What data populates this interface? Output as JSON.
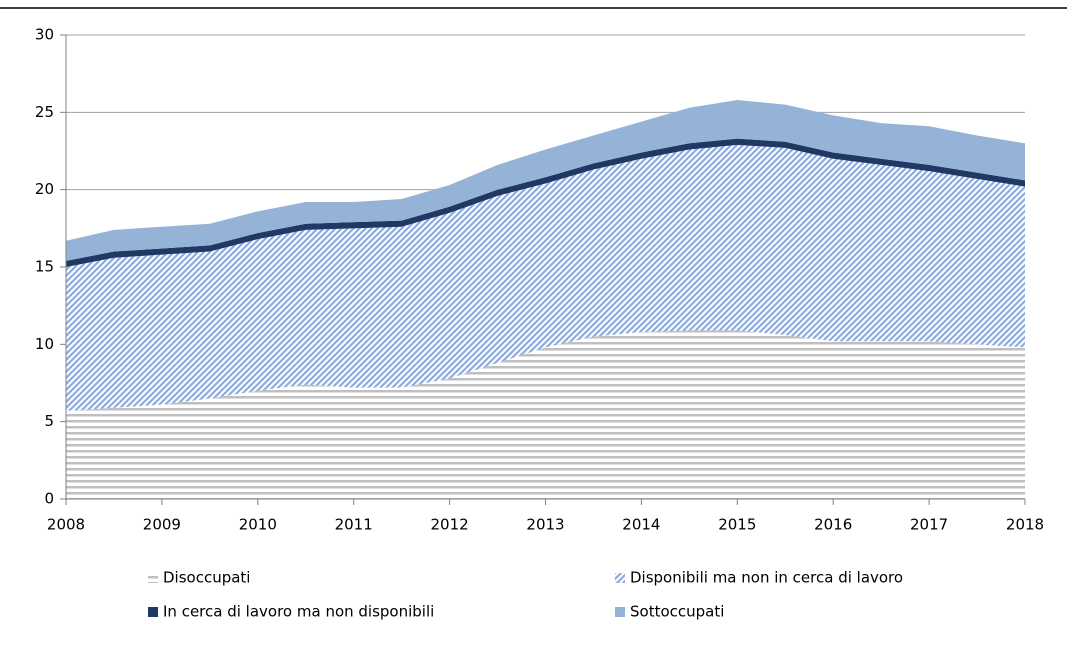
{
  "chart_data": {
    "type": "stacked_area",
    "x": [
      2008,
      2008.5,
      2009,
      2009.5,
      2010,
      2010.5,
      2011,
      2011.5,
      2012,
      2012.5,
      2013,
      2013.5,
      2014,
      2014.5,
      2015,
      2015.5,
      2016,
      2016.5,
      2017,
      2017.5,
      2018
    ],
    "series": [
      {
        "name": "Disoccupati",
        "color": "#bfbfbf",
        "hatch": "horizontal",
        "values": [
          5.7,
          5.9,
          6.1,
          6.5,
          7.0,
          7.4,
          7.2,
          7.2,
          7.8,
          8.8,
          9.8,
          10.5,
          10.8,
          10.9,
          10.9,
          10.6,
          10.2,
          10.2,
          10.2,
          10.0,
          9.8
        ]
      },
      {
        "name": "Disponibili ma non in cerca di lavoro",
        "color": "#8eaadb",
        "hatch": "diagonal",
        "values": [
          9.3,
          9.7,
          9.7,
          9.5,
          9.8,
          10.0,
          10.3,
          10.4,
          10.7,
          10.8,
          10.6,
          10.8,
          11.2,
          11.7,
          12.0,
          12.1,
          11.8,
          11.4,
          11.0,
          10.7,
          10.4
        ]
      },
      {
        "name": "In cerca di lavoro ma non disponibili",
        "color": "#1f3864",
        "hatch": null,
        "values": [
          0.4,
          0.4,
          0.4,
          0.4,
          0.4,
          0.4,
          0.4,
          0.4,
          0.4,
          0.4,
          0.4,
          0.4,
          0.4,
          0.4,
          0.4,
          0.4,
          0.4,
          0.4,
          0.4,
          0.4,
          0.4
        ]
      },
      {
        "name": "Sottoccupati",
        "color": "#95b3d7",
        "hatch": null,
        "values": [
          1.3,
          1.4,
          1.4,
          1.4,
          1.4,
          1.4,
          1.3,
          1.4,
          1.4,
          1.6,
          1.8,
          1.8,
          2.0,
          2.3,
          2.5,
          2.4,
          2.4,
          2.3,
          2.5,
          2.4,
          2.4
        ]
      }
    ],
    "xlim": [
      2008,
      2018
    ],
    "xticks": [
      2008,
      2009,
      2010,
      2011,
      2012,
      2013,
      2014,
      2015,
      2016,
      2017,
      2018
    ],
    "ylim": [
      0,
      30
    ],
    "yticks": [
      0,
      5,
      10,
      15,
      20,
      25,
      30
    ],
    "grid": true
  }
}
